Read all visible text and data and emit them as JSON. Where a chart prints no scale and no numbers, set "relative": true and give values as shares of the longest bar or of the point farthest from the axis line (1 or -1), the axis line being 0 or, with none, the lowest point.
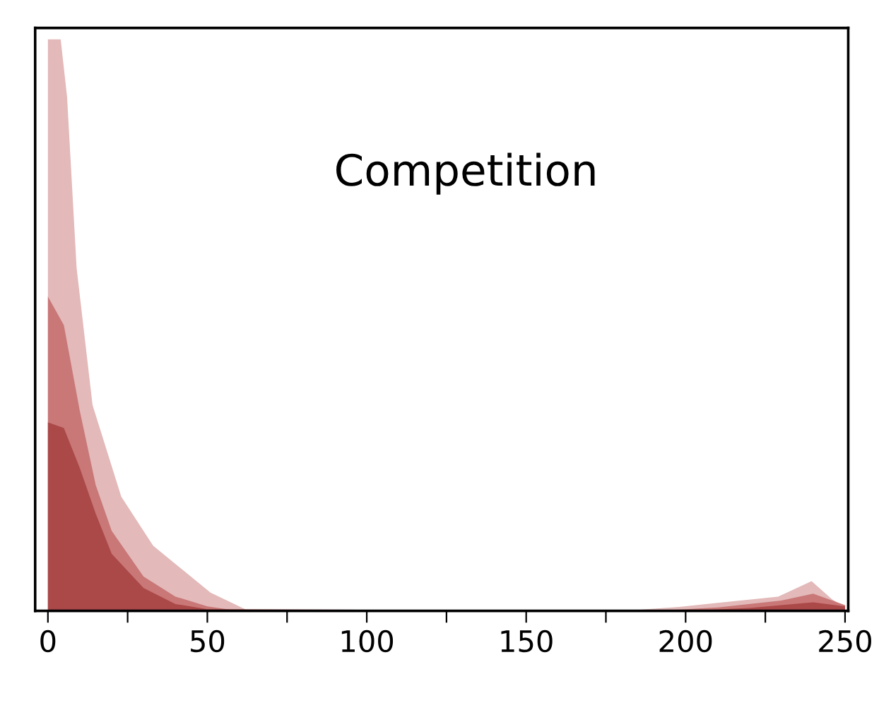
{
  "chart_data": {
    "type": "area",
    "relative": true,
    "annotations": [
      "Competition"
    ],
    "xlim": [
      -4,
      251
    ],
    "xticks": [
      0,
      {
        "value": 25,
        "label": null
      },
      50,
      {
        "value": 75,
        "label": null
      },
      100,
      {
        "value": 125,
        "label": null
      },
      150,
      {
        "value": 175,
        "label": null
      },
      200,
      {
        "value": 225,
        "label": null
      },
      250
    ],
    "grid": false,
    "tick_labels": "x",
    "series": [
      {
        "color": "#e3b9b9",
        "x": [
          0,
          4,
          6,
          9,
          14,
          23,
          33,
          51,
          63,
          180,
          198,
          229,
          239.5,
          246,
          249,
          250
        ],
        "values": [
          1,
          1,
          0.9,
          0.6,
          0.36,
          0.2,
          0.114,
          0.032,
          0,
          0,
          0.007,
          0.025,
          0.052,
          0.02,
          0.01,
          0.01
        ]
      },
      {
        "color": "#c97777",
        "x": [
          0,
          5,
          10,
          15,
          20,
          30,
          40,
          50,
          60,
          190,
          210,
          230,
          240,
          246,
          250
        ],
        "values": [
          0.55,
          0.5,
          0.35,
          0.22,
          0.14,
          0.06,
          0.025,
          0.008,
          0,
          0,
          0.006,
          0.018,
          0.03,
          0.018,
          0.01
        ]
      },
      {
        "color": "#ab4848",
        "x": [
          0,
          5,
          10,
          15,
          20,
          30,
          40,
          50,
          200,
          220,
          240,
          250
        ],
        "values": [
          0.33,
          0.32,
          0.25,
          0.17,
          0.1,
          0.04,
          0.012,
          0.003,
          0,
          0.005,
          0.015,
          0.008
        ]
      }
    ]
  }
}
